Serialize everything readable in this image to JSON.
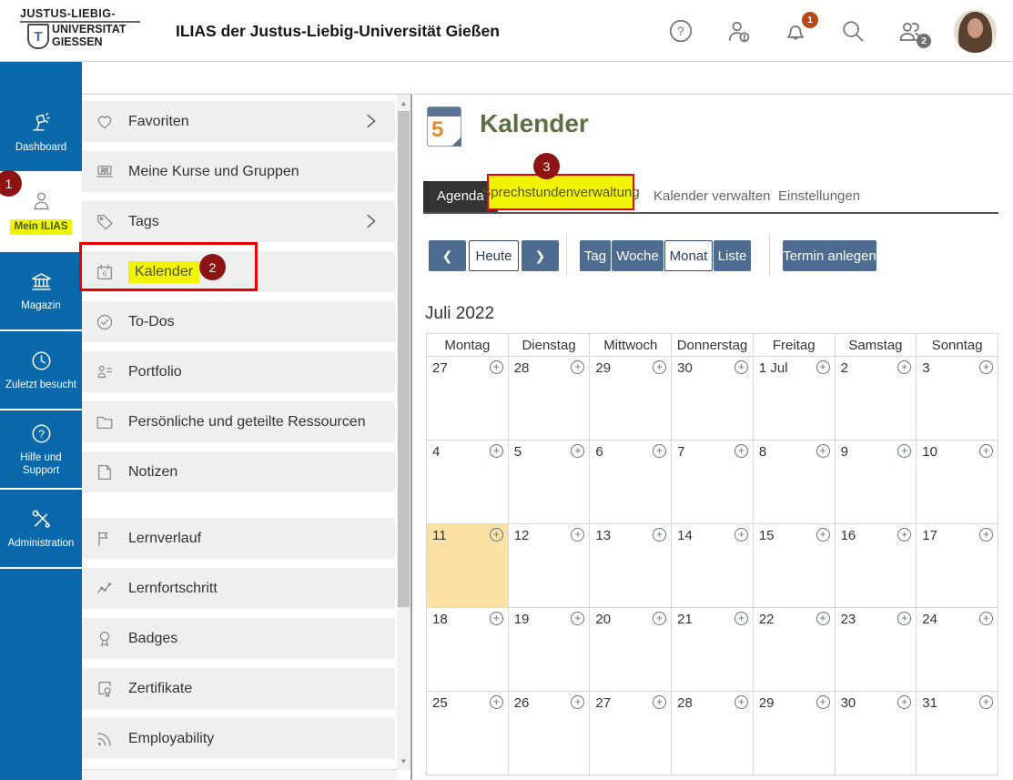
{
  "header": {
    "logo": {
      "top": "JUSTUS-LIEBIG-",
      "mid": "UNIVERSITAT",
      "bottom": "GIESSEN",
      "shield_letter": "T"
    },
    "app_title": "ILIAS der Justus-Liebig-Universität Gießen",
    "icons": [
      "help-icon",
      "user-status-icon",
      "bell-icon",
      "search-icon",
      "contacts-icon",
      "avatar"
    ],
    "bell_badge": "1",
    "contacts_badge": "2"
  },
  "rail": {
    "items": [
      {
        "label": "Dashboard",
        "icon": "lamp-icon",
        "active": false
      },
      {
        "label": "Mein ILIAS",
        "icon": "person-icon",
        "active": true,
        "highlighted": true
      },
      {
        "label": "Magazin",
        "icon": "bank-icon",
        "active": false
      },
      {
        "label": "Zuletzt besucht",
        "icon": "clock-icon",
        "active": false
      },
      {
        "label": "Hilfe und Support",
        "icon": "help-circle-icon",
        "active": false
      },
      {
        "label": "Administration",
        "icon": "tools-icon",
        "active": false
      }
    ]
  },
  "menu": {
    "items": [
      {
        "label": "Favoriten",
        "icon": "heart-icon",
        "chevron": true
      },
      {
        "label": "Meine Kurse und Gruppen",
        "icon": "courses-icon"
      },
      {
        "label": "Tags",
        "icon": "tag-icon",
        "chevron": true
      },
      {
        "label": "Kalender",
        "icon": "calendar-icon",
        "highlighted": true
      },
      {
        "label": "To-Dos",
        "icon": "todo-check-icon"
      },
      {
        "label": "Portfolio",
        "icon": "portfolio-icon"
      },
      {
        "label": "Persönliche und geteilte Ressourcen",
        "icon": "folder-icon"
      },
      {
        "label": "Notizen",
        "icon": "note-icon"
      },
      {
        "label": "Lernverlauf",
        "icon": "flag-icon"
      },
      {
        "label": "Lernfortschritt",
        "icon": "trend-chart-icon"
      },
      {
        "label": "Badges",
        "icon": "medal-icon"
      },
      {
        "label": "Zertifikate",
        "icon": "certificate-icon"
      },
      {
        "label": "Employability",
        "icon": "rss-icon"
      }
    ]
  },
  "main": {
    "page_title": "Kalender",
    "tabs": [
      {
        "label": "Agenda",
        "active": true
      },
      {
        "label": "Sprechstundenverwaltung",
        "highlighted": true
      },
      {
        "label": "Kalender verwalten"
      },
      {
        "label": "Einstellungen"
      }
    ],
    "toolbar": {
      "prev": "❮",
      "today": "Heute",
      "next": "❯",
      "views": [
        "Tag",
        "Woche",
        "Monat",
        "Liste"
      ],
      "active_view": "Monat",
      "create": "Termin anlegen"
    },
    "month_title": "Juli 2022",
    "calendar": {
      "day_headers": [
        "Montag",
        "Dienstag",
        "Mittwoch",
        "Donnerstag",
        "Freitag",
        "Samstag",
        "Sonntag"
      ],
      "weeks": [
        [
          "27",
          "28",
          "29",
          "30",
          "1 Jul",
          "2",
          "3"
        ],
        [
          "4",
          "5",
          "6",
          "7",
          "8",
          "9",
          "10"
        ],
        [
          "11",
          "12",
          "13",
          "14",
          "15",
          "16",
          "17"
        ],
        [
          "18",
          "19",
          "20",
          "21",
          "22",
          "23",
          "24"
        ],
        [
          "25",
          "26",
          "27",
          "28",
          "29",
          "30",
          "31"
        ]
      ],
      "today": "11"
    }
  },
  "annotations": {
    "step1": "1",
    "step2": "2",
    "step3": "3"
  },
  "colors": {
    "rail_blue": "#0b68ab",
    "button_blue": "#4d6c90",
    "annotation_red": "#8e1414",
    "box_red": "#ea0000",
    "highlight_yellow": "#f2f205",
    "today_yellow": "#fbe2a2",
    "title_green": "#5a7144",
    "badge_orange": "#b54a17"
  }
}
